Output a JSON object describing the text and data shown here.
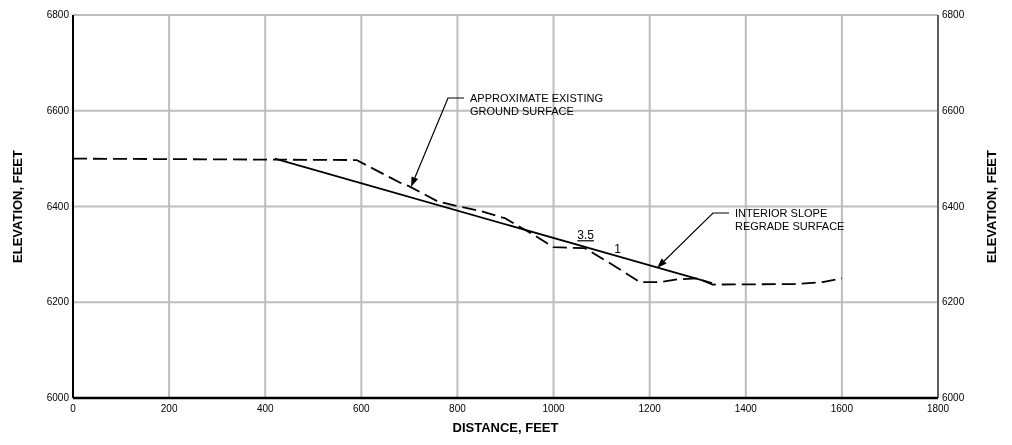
{
  "chart_data": {
    "type": "line",
    "xlabel": "DISTANCE, FEET",
    "ylabel": "ELEVATION, FEET",
    "y2label": "ELEVATION, FEET",
    "xlim": [
      0,
      1800
    ],
    "xticks": [
      0,
      200,
      400,
      600,
      800,
      1000,
      1200,
      1400,
      1600,
      1800
    ],
    "ylim": [
      6000,
      6800
    ],
    "yticks": [
      6000,
      6200,
      6400,
      6600,
      6800
    ],
    "y2lim": [
      6000,
      6800
    ],
    "y2ticks": [
      6000,
      6200,
      6400,
      6600,
      6800
    ],
    "grid": true,
    "series": [
      {
        "color": "#000000",
        "line_style": "dashed",
        "x": [
          0,
          590,
          680,
          700,
          760,
          850,
          900,
          960,
          1000,
          1065,
          1120,
          1180,
          1220,
          1260,
          1300,
          1330,
          1500,
          1560,
          1600
        ],
        "values": [
          6500,
          6497,
          6450,
          6442,
          6410,
          6390,
          6375,
          6340,
          6315,
          6313,
          6280,
          6242,
          6242,
          6248,
          6250,
          6237,
          6238,
          6242,
          6250
        ]
      },
      {
        "color": "#000000",
        "line_style": "solid",
        "x": [
          420,
          1330
        ],
        "values": [
          6500,
          6240
        ]
      }
    ],
    "annotations": [
      "APPROXIMATE EXISTING\nGROUND SURFACE",
      "INTERIOR SLOPE\nREGRADE SURFACE",
      {
        "text": "3.5",
        "x": 1100,
        "y": 6315
      },
      {
        "text": "1",
        "x": 1100,
        "y": 6315
      }
    ]
  }
}
